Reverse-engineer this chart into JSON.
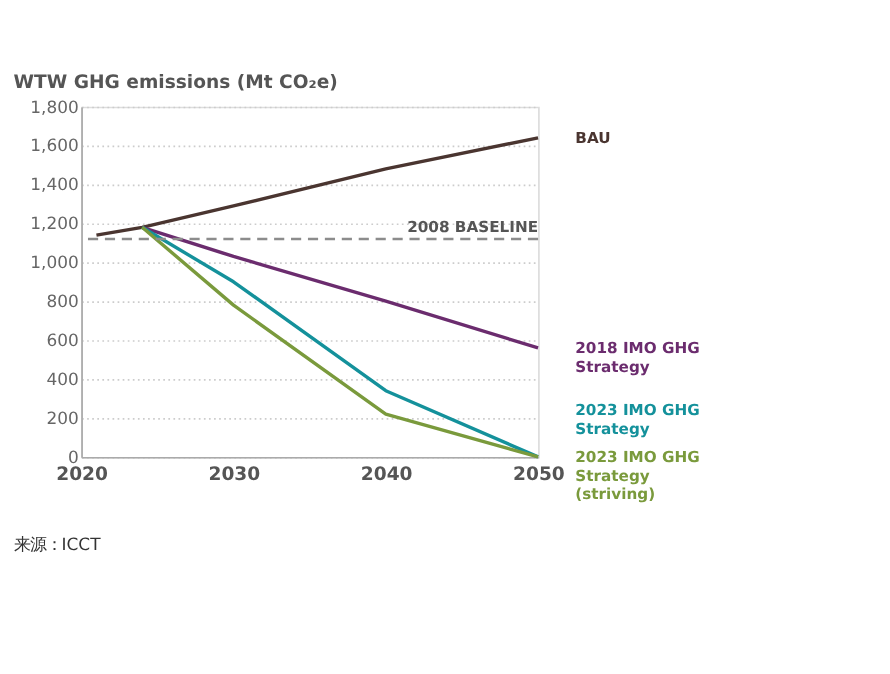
{
  "chart_data": {
    "type": "line",
    "title": "WTW GHG emissions (Mt CO₂e)",
    "xlim": [
      2020,
      2050
    ],
    "xticks": [
      2020,
      2030,
      2040,
      2050
    ],
    "ylim": [
      0,
      1800
    ],
    "yticks": [
      0,
      200,
      400,
      600,
      800,
      {
        "value": 1000,
        "label": "1,000"
      },
      {
        "value": 1200,
        "label": "1,200"
      },
      {
        "value": 1400,
        "label": "1,400"
      },
      {
        "value": 1600,
        "label": "1,600"
      },
      {
        "value": 1800,
        "label": "1,800"
      }
    ],
    "grid": "y",
    "marker": "none",
    "line_style": "solid",
    "series": [
      {
        "name": "BAU",
        "color": "#4a3530",
        "x": [
          2021,
          2024,
          2030,
          2040,
          2050
        ],
        "values": [
          1140,
          1180,
          1290,
          1480,
          1640
        ]
      },
      {
        "name": "2018 IMO GHG Strategy",
        "color": "#6b2c6e",
        "x": [
          2024,
          2030,
          2040,
          2050
        ],
        "values": [
          1180,
          1030,
          800,
          560
        ]
      },
      {
        "name": "2023 IMO GHG Strategy",
        "color": "#14919b",
        "x": [
          2024,
          2030,
          2040,
          2050
        ],
        "values": [
          1180,
          900,
          340,
          0
        ]
      },
      {
        "name": "2023 IMO GHG Strategy (striving)",
        "color": "#7a9a3c",
        "x": [
          2024,
          2030,
          2040,
          2050
        ],
        "values": [
          1180,
          780,
          220,
          0
        ]
      }
    ],
    "ref_lines": [
      {
        "axis": "y",
        "value": 1120,
        "label": "2008 BASELINE",
        "color": "#8c8c8c",
        "line_style": "dashed"
      }
    ],
    "annotations": [
      "来源：ICCT"
    ]
  }
}
